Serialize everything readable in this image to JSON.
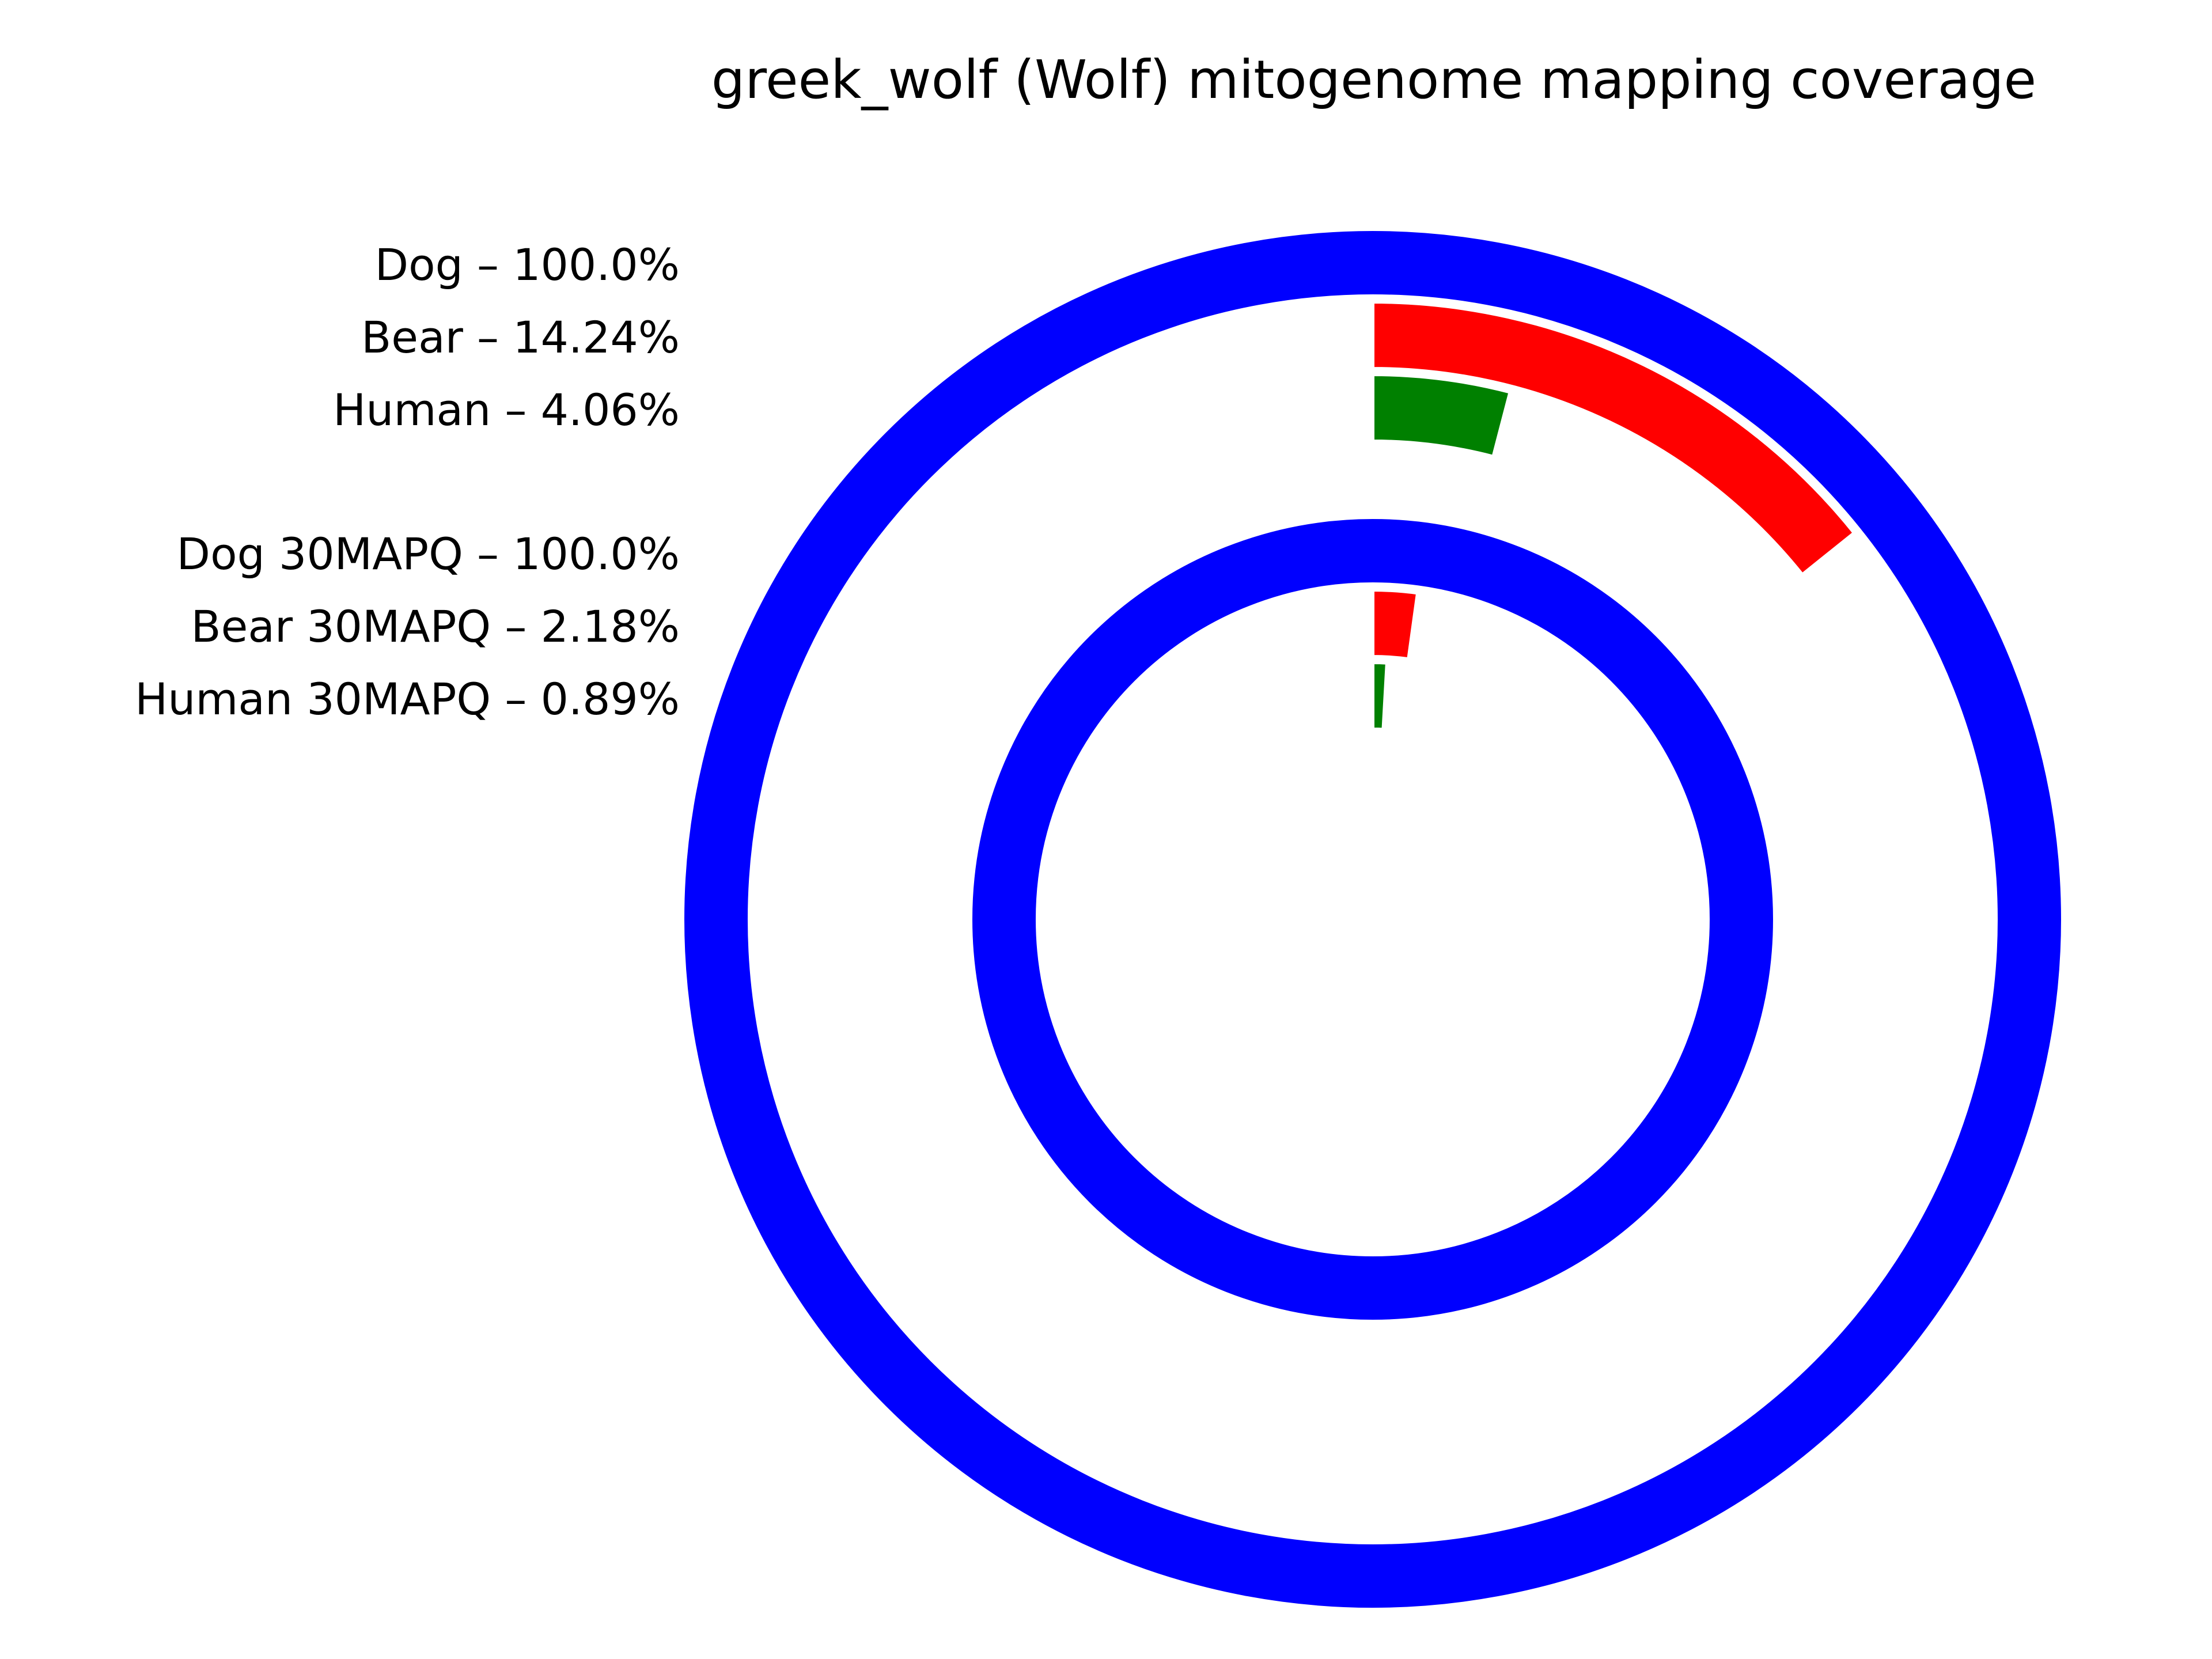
{
  "chart_data": {
    "type": "radial-bar",
    "title": "greek_wolf (Wolf) mitogenome mapping coverage",
    "groups": [
      {
        "series": [
          {
            "name": "Dog",
            "label": "Dog – 100.0%",
            "value": 100.0,
            "color": "#0000ff"
          },
          {
            "name": "Bear",
            "label": "Bear – 14.24%",
            "value": 14.24,
            "color": "#ff0000"
          },
          {
            "name": "Human",
            "label": "Human – 4.06%",
            "value": 4.06,
            "color": "#008000"
          }
        ]
      },
      {
        "series": [
          {
            "name": "Dog 30MAPQ",
            "label": "Dog 30MAPQ – 100.0%",
            "value": 100.0,
            "color": "#0000ff"
          },
          {
            "name": "Bear 30MAPQ",
            "label": "Bear 30MAPQ – 2.18%",
            "value": 2.18,
            "color": "#ff0000"
          },
          {
            "name": "Human 30MAPQ",
            "label": "Human 30MAPQ – 0.89%",
            "value": 0.89,
            "color": "#008000"
          }
        ]
      }
    ],
    "value_range": [
      0,
      100
    ]
  }
}
